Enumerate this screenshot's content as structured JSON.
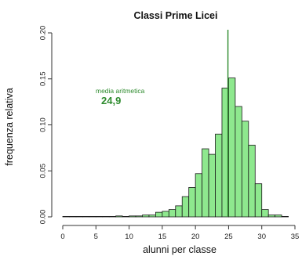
{
  "chart_data": {
    "type": "bar",
    "title": "Classi Prime Licei",
    "xlabel": "alunni per classe",
    "ylabel": "frequenza relativa",
    "xlim": [
      0,
      35
    ],
    "ylim": [
      0,
      0.2
    ],
    "x_ticks": [
      "0",
      "5",
      "10",
      "15",
      "20",
      "25",
      "30",
      "35"
    ],
    "y_ticks": [
      "0.00",
      "0.05",
      "0.10",
      "0.15",
      "0.20"
    ],
    "bin_width": 1,
    "bins": [
      {
        "x": 0,
        "value": 0.0
      },
      {
        "x": 1,
        "value": 0.0
      },
      {
        "x": 2,
        "value": 0.0
      },
      {
        "x": 3,
        "value": 0.0
      },
      {
        "x": 4,
        "value": 0.0
      },
      {
        "x": 5,
        "value": 0.0
      },
      {
        "x": 6,
        "value": 0.0
      },
      {
        "x": 7,
        "value": 0.0
      },
      {
        "x": 8,
        "value": 0.001
      },
      {
        "x": 9,
        "value": 0.0
      },
      {
        "x": 10,
        "value": 0.001
      },
      {
        "x": 11,
        "value": 0.001
      },
      {
        "x": 12,
        "value": 0.002
      },
      {
        "x": 13,
        "value": 0.002
      },
      {
        "x": 14,
        "value": 0.005
      },
      {
        "x": 15,
        "value": 0.006
      },
      {
        "x": 16,
        "value": 0.008
      },
      {
        "x": 17,
        "value": 0.012
      },
      {
        "x": 18,
        "value": 0.022
      },
      {
        "x": 19,
        "value": 0.032
      },
      {
        "x": 20,
        "value": 0.047
      },
      {
        "x": 21,
        "value": 0.074
      },
      {
        "x": 22,
        "value": 0.068
      },
      {
        "x": 23,
        "value": 0.09
      },
      {
        "x": 24,
        "value": 0.14
      },
      {
        "x": 25,
        "value": 0.151
      },
      {
        "x": 26,
        "value": 0.12
      },
      {
        "x": 27,
        "value": 0.104
      },
      {
        "x": 28,
        "value": 0.078
      },
      {
        "x": 29,
        "value": 0.036
      },
      {
        "x": 30,
        "value": 0.008
      },
      {
        "x": 31,
        "value": 0.002
      },
      {
        "x": 32,
        "value": 0.002
      },
      {
        "x": 33,
        "value": 0.0
      }
    ],
    "mean_line": {
      "x": 24.9
    },
    "annotation": {
      "label": "media aritmetica",
      "value": "24,9"
    },
    "grid": false,
    "colors": {
      "bar_fill": "#8ee88e",
      "bar_stroke": "#1a1a1a",
      "mean_line": "#2e8b2e",
      "annotation": "#2e8b2e",
      "axis": "#333333"
    }
  }
}
